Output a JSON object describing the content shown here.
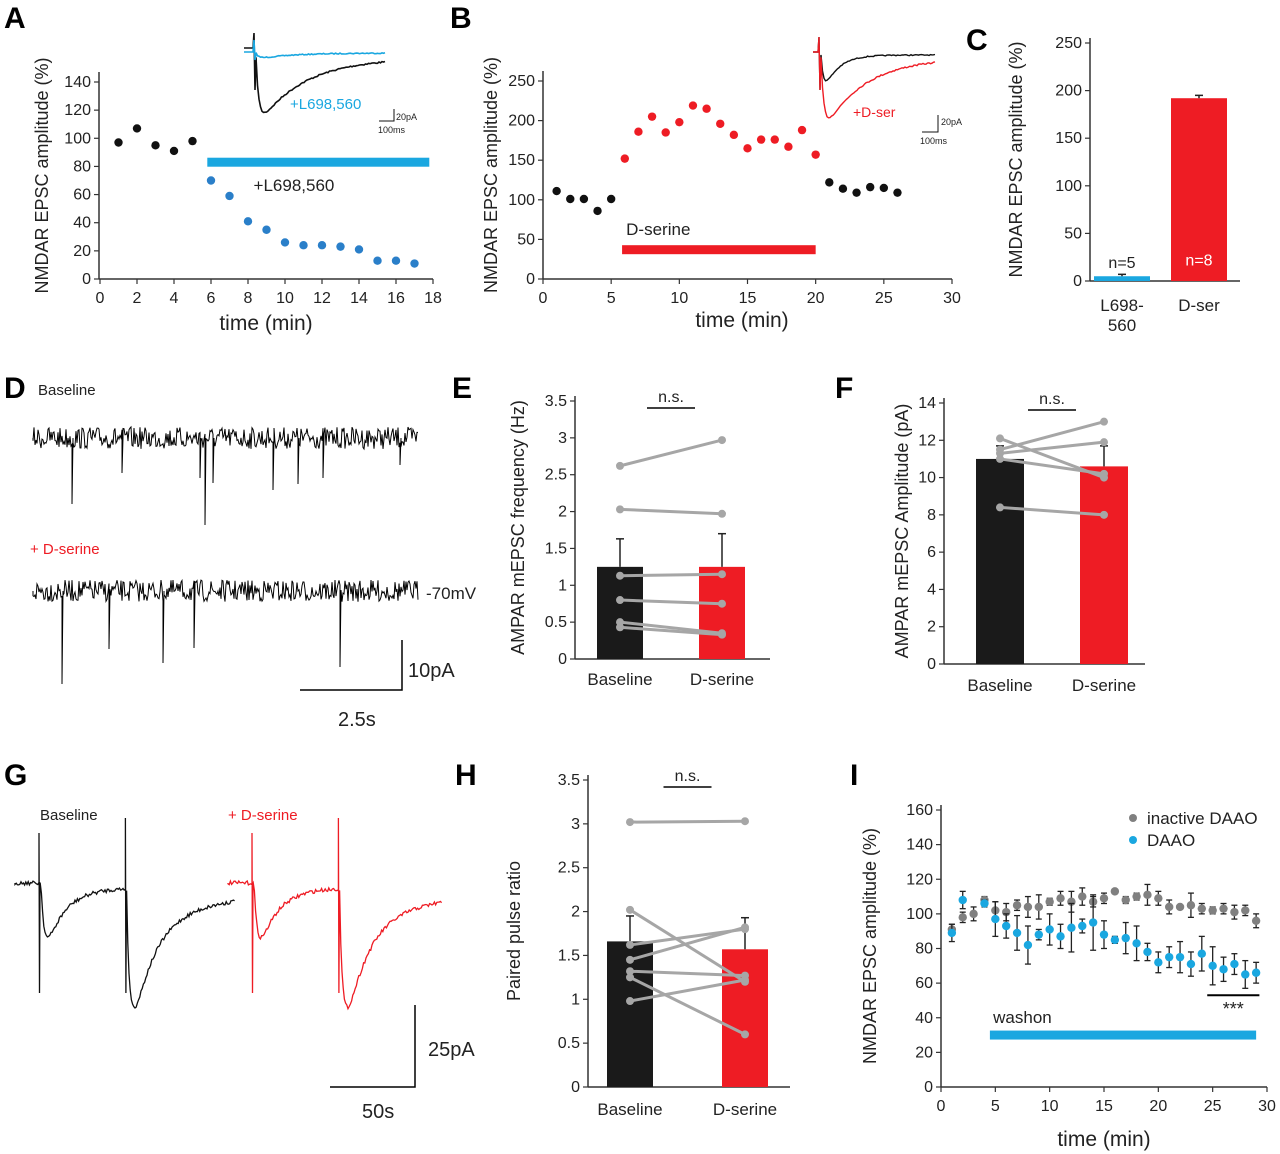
{
  "panel_letters": [
    "A",
    "B",
    "C",
    "D",
    "E",
    "F",
    "G",
    "H",
    "I"
  ],
  "colors": {
    "black": "#111111",
    "blue": "#1aa7e0",
    "red": "#ee1c24",
    "gray": "#a6a6a6",
    "dark_gray": "#777777"
  },
  "traces": {
    "A": {
      "label": "+L698,560",
      "scale_y": "20pA",
      "scale_x": "100ms"
    },
    "B": {
      "label": "+D-ser",
      "scale_y": "20pA",
      "scale_x": "100ms"
    },
    "D": {
      "baseline": "Baseline",
      "dserine": "+ D-serine",
      "holding": "-70mV",
      "scale_y": "10pA",
      "scale_x": "2.5s"
    },
    "G": {
      "baseline": "Baseline",
      "dserine": "+ D-serine",
      "scale_y": "25pA",
      "scale_x": "50s"
    }
  },
  "chart_data": [
    {
      "panel": "A",
      "type": "scatter",
      "xlabel": "time (min)",
      "ylabel": "NMDAR EPSC amplitude (%)",
      "xlim": [
        0,
        18
      ],
      "ylim": [
        0,
        140
      ],
      "x_ticks": [
        0,
        2,
        4,
        6,
        8,
        10,
        12,
        14,
        16,
        18
      ],
      "y_ticks": [
        0,
        20,
        40,
        60,
        80,
        100,
        120,
        140
      ],
      "series": [
        {
          "color": "#111111",
          "x": [
            1,
            2,
            3,
            4,
            5
          ],
          "y": [
            97,
            107,
            95,
            91,
            98
          ]
        },
        {
          "color": "#2a7fc9",
          "x": [
            6,
            7,
            8,
            9,
            10,
            11,
            12,
            13,
            14,
            15,
            16,
            17
          ],
          "y": [
            70,
            59,
            41,
            35,
            26,
            24,
            24,
            23,
            21,
            13,
            13,
            11
          ]
        }
      ],
      "treatment_bar": {
        "label": "+L698,560",
        "x_start": 5.8,
        "x_end": 17.8,
        "y": 83,
        "color": "#1aa7e0"
      }
    },
    {
      "panel": "B",
      "type": "scatter",
      "xlabel": "time (min)",
      "ylabel": "NMDAR EPSC amplitude (%)",
      "xlim": [
        0,
        30
      ],
      "ylim": [
        0,
        250
      ],
      "x_ticks": [
        0,
        5,
        10,
        15,
        20,
        25,
        30
      ],
      "y_ticks": [
        0,
        50,
        100,
        150,
        200,
        250
      ],
      "series": [
        {
          "color": "#111111",
          "x": [
            1,
            2,
            3,
            4,
            5
          ],
          "y": [
            111,
            101,
            101,
            86,
            101
          ]
        },
        {
          "color": "#ee1c24",
          "x": [
            6,
            7,
            8,
            9,
            10,
            11,
            12,
            13,
            14,
            15,
            16,
            17,
            18,
            19,
            20
          ],
          "y": [
            152,
            186,
            205,
            185,
            198,
            219,
            215,
            196,
            182,
            165,
            176,
            176,
            167,
            188,
            157
          ]
        },
        {
          "color": "#111111",
          "x": [
            21,
            22,
            23,
            24,
            25,
            26
          ],
          "y": [
            122,
            114,
            109,
            116,
            115,
            109
          ]
        }
      ],
      "treatment_bar": {
        "label": "D-serine",
        "x_start": 5.8,
        "x_end": 20,
        "y": 37,
        "color": "#ee1c24"
      }
    },
    {
      "panel": "C",
      "type": "bar",
      "ylabel": "NMDAR EPSC amplitude (%)",
      "ylim": [
        0,
        250
      ],
      "y_ticks": [
        0,
        50,
        100,
        150,
        200,
        250
      ],
      "categories": [
        "L698-\n560",
        "D-ser"
      ],
      "category_lines": [
        [
          "L698-",
          "560"
        ],
        [
          "D-ser"
        ]
      ],
      "values": [
        5,
        192
      ],
      "errors": [
        2,
        3
      ],
      "colors": [
        "#1aa7e0",
        "#ee1c24"
      ],
      "n_labels": [
        "n=5",
        "n=8"
      ]
    },
    {
      "panel": "E",
      "type": "bar",
      "ylabel": "AMPAR mEPSC frequency (Hz)",
      "ylim": [
        0,
        3.5
      ],
      "y_ticks": [
        0,
        0.5,
        1,
        1.5,
        2,
        2.5,
        3,
        3.5
      ],
      "categories": [
        "Baseline",
        "D-serine"
      ],
      "values": [
        1.25,
        1.25
      ],
      "errors": [
        0.38,
        0.45
      ],
      "colors": [
        "#1a1a1a",
        "#ee1c24"
      ],
      "paired": [
        [
          2.62,
          2.97
        ],
        [
          2.03,
          1.97
        ],
        [
          1.13,
          1.15
        ],
        [
          0.8,
          0.75
        ],
        [
          0.5,
          0.35
        ],
        [
          0.43,
          0.33
        ]
      ],
      "significance": "n.s."
    },
    {
      "panel": "F",
      "type": "bar",
      "ylabel": "AMPAR mEPSC Amplitude (pA)",
      "ylim": [
        0,
        14
      ],
      "y_ticks": [
        0,
        2,
        4,
        6,
        8,
        10,
        12,
        14
      ],
      "categories": [
        "Baseline",
        "D-serine"
      ],
      "values": [
        11.0,
        10.6
      ],
      "errors": [
        0.7,
        1.1
      ],
      "colors": [
        "#1a1a1a",
        "#ee1c24"
      ],
      "paired": [
        [
          12.1,
          10.0
        ],
        [
          11.5,
          13.0
        ],
        [
          11.3,
          11.9
        ],
        [
          11.0,
          10.2
        ],
        [
          8.4,
          8.0
        ]
      ],
      "significance": "n.s."
    },
    {
      "panel": "H",
      "type": "bar",
      "ylabel": "Paired pulse ratio",
      "ylim": [
        0,
        3.5
      ],
      "y_ticks": [
        0,
        0.5,
        1,
        1.5,
        2,
        2.5,
        3,
        3.5
      ],
      "categories": [
        "Baseline",
        "D-serine"
      ],
      "values": [
        1.66,
        1.57
      ],
      "errors": [
        0.29,
        0.36
      ],
      "colors": [
        "#1a1a1a",
        "#ee1c24"
      ],
      "paired": [
        [
          3.02,
          3.03
        ],
        [
          2.02,
          1.2
        ],
        [
          1.62,
          1.8
        ],
        [
          1.45,
          1.82
        ],
        [
          1.32,
          1.27
        ],
        [
          1.25,
          0.6
        ],
        [
          0.98,
          1.22
        ]
      ],
      "significance": "n.s."
    },
    {
      "panel": "I",
      "type": "scatter",
      "xlabel": "time (min)",
      "ylabel": "NMDAR EPSC amplitude (%)",
      "xlim": [
        0,
        30
      ],
      "ylim": [
        0,
        160
      ],
      "x_ticks": [
        0,
        5,
        10,
        15,
        20,
        25,
        30
      ],
      "y_ticks": [
        0,
        20,
        40,
        60,
        80,
        100,
        120,
        140,
        160
      ],
      "legend": "top-right",
      "series": [
        {
          "name": "inactive DAAO",
          "color": "#808080",
          "x": [
            1,
            2,
            3,
            4,
            5,
            6,
            7,
            8,
            9,
            10,
            11,
            12,
            13,
            14,
            15,
            16,
            17,
            18,
            19,
            20,
            21,
            22,
            23,
            24,
            25,
            26,
            27,
            28,
            29
          ],
          "y": [
            91,
            98,
            100,
            108,
            102,
            101,
            105,
            104,
            104,
            107,
            109,
            107,
            110,
            107,
            109,
            113,
            108,
            110,
            111,
            109,
            104,
            104,
            105,
            103,
            102,
            103,
            101,
            102,
            96
          ],
          "err": [
            3,
            3,
            4,
            2,
            5,
            5,
            3,
            6,
            7,
            2,
            4,
            6,
            5,
            3,
            3,
            1,
            2,
            2,
            6,
            4,
            4,
            1,
            7,
            3,
            2,
            3,
            4,
            3,
            4
          ]
        },
        {
          "name": "DAAO",
          "color": "#1aa7e0",
          "x": [
            1,
            2,
            4,
            5,
            6,
            7,
            8,
            9,
            10,
            11,
            12,
            13,
            14,
            15,
            16,
            17,
            18,
            19,
            20,
            21,
            22,
            23,
            24,
            25,
            26,
            27,
            28,
            29
          ],
          "y": [
            89,
            108,
            106,
            97,
            93,
            89,
            82,
            88,
            91,
            87,
            92,
            93,
            95,
            88,
            85,
            86,
            83,
            78,
            72,
            75,
            75,
            71,
            77,
            70,
            68,
            71,
            65,
            66
          ],
          "err": [
            5,
            5,
            2,
            10,
            7,
            10,
            11,
            3,
            9,
            7,
            14,
            4,
            16,
            8,
            2,
            9,
            10,
            5,
            6,
            6,
            9,
            7,
            10,
            11,
            7,
            6,
            8,
            6
          ]
        }
      ],
      "treatment_bar": {
        "label": "washon",
        "x_start": 4.5,
        "x_end": 29,
        "y": 30,
        "color": "#1aa7e0"
      },
      "significance": {
        "label": "***",
        "x_start": 24.5,
        "x_end": 29.3,
        "y": 53
      }
    }
  ]
}
